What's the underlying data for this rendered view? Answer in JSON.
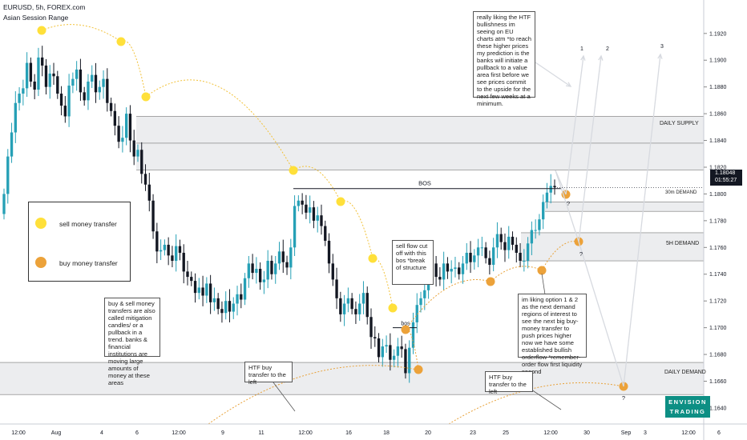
{
  "header": {
    "symbol_line": "EURUSD, 5h, FOREX.com",
    "indicator": "Asian Session Range"
  },
  "price_badge": {
    "price": "1.18048",
    "countdown": "01:55:27"
  },
  "colors": {
    "bull": "#26a0b6",
    "bear": "#131722",
    "sell_dot": "#ffe03a",
    "buy_dot": "#eca23a",
    "zone": "#e6e7ea",
    "logo": "#0d8f84"
  },
  "legend": {
    "sell_label": "sell money transfer",
    "buy_label": "buy money transfer"
  },
  "notes": {
    "htf_bias": "really liking the HTF bullishness im seeing on EU charts atm *to reach these higher prices my prediction is the banks will initiate a pullback to a value area first before we see prices commit to the upside for the next few weeks at a minimum.",
    "mitigation": "buy & sell money transfers are also called mitigation candles/ or a pullback in a trend. banks & financial institutions are moving large amounts of money at these areas",
    "bos_note": "sell flow cut off with this bos *break of structure",
    "options": "im liking option 1 & 2 as the next demand regions of interest to see the next big buy-money transfer to push prices higher now we have some established bullish orderflow *remember- order flow first liquidity second",
    "htf_left_1": "HTF buy transfer to the left",
    "htf_left_2": "HTF buy transfer to the left"
  },
  "zone_labels": {
    "daily_supply": "DAILY SUPPLY",
    "demand_30m": "30m DEMAND",
    "demand_5h": "5H DEMAND",
    "daily_demand": "DAILY DEMAND"
  },
  "chart_labels": {
    "bos_main": "BOS",
    "bos_small": "bos",
    "q": "?",
    "option_1": "1",
    "option_2": "2",
    "option_3": "3"
  },
  "logo": {
    "line1": "ENVISION",
    "line2": "TRADING"
  },
  "chart_data": {
    "type": "candlestick",
    "symbol": "EURUSD",
    "timeframe": "5h",
    "y_ticks": [
      1.164,
      1.166,
      1.168,
      1.17,
      1.172,
      1.174,
      1.176,
      1.178,
      1.18,
      1.182,
      1.184,
      1.186,
      1.188,
      1.19,
      1.192
    ],
    "x_ticks": [
      "12:00",
      "Aug",
      "4",
      "6",
      "12:00",
      "9",
      "11",
      "12:00",
      "16",
      "18",
      "20",
      "23",
      "25",
      "12:00",
      "30",
      "Sep",
      "3",
      "12:00",
      "6"
    ],
    "ohlc_close": [
      1.18,
      1.1828,
      1.1846,
      1.1868,
      1.1875,
      1.1879,
      1.1898,
      1.1884,
      1.1878,
      1.1902,
      1.1896,
      1.188,
      1.189,
      1.1888,
      1.1875,
      1.1866,
      1.1858,
      1.1881,
      1.1886,
      1.1893,
      1.1876,
      1.187,
      1.1884,
      1.1889,
      1.1876,
      1.188,
      1.1886,
      1.1868,
      1.1862,
      1.1851,
      1.1839,
      1.1842,
      1.186,
      1.184,
      1.1828,
      1.1833,
      1.1815,
      1.1807,
      1.1795,
      1.1772,
      1.1757,
      1.1758,
      1.1762,
      1.1754,
      1.175,
      1.1761,
      1.1756,
      1.1742,
      1.1738,
      1.1735,
      1.1726,
      1.173,
      1.1724,
      1.1733,
      1.1719,
      1.1722,
      1.1714,
      1.1711,
      1.172,
      1.1712,
      1.1718,
      1.1725,
      1.1721,
      1.1737,
      1.1748,
      1.1741,
      1.1744,
      1.1734,
      1.1736,
      1.175,
      1.174,
      1.1748,
      1.1757,
      1.1749,
      1.1745,
      1.176,
      1.1791,
      1.1795,
      1.1792,
      1.1786,
      1.179,
      1.178,
      1.1784,
      1.1776,
      1.1765,
      1.1748,
      1.1736,
      1.1722,
      1.171,
      1.1718,
      1.1722,
      1.1714,
      1.171,
      1.1718,
      1.1726,
      1.1708,
      1.1693,
      1.1692,
      1.1678,
      1.1686,
      1.1687,
      1.1676,
      1.1679,
      1.1686,
      1.1684,
      1.1666,
      1.1685,
      1.1704,
      1.1717,
      1.1722,
      1.1728,
      1.1742,
      1.1748,
      1.1738,
      1.1736,
      1.1748,
      1.1742,
      1.1744,
      1.1745,
      1.174,
      1.1748,
      1.1756,
      1.1749,
      1.1754,
      1.176,
      1.176,
      1.1752,
      1.1747,
      1.176,
      1.177,
      1.1764,
      1.1758,
      1.1768,
      1.1762,
      1.1756,
      1.175,
      1.175,
      1.1763,
      1.1773,
      1.1773,
      1.1781,
      1.1794,
      1.1801,
      1.1806,
      1.1805
    ],
    "zones": [
      {
        "name": "DAILY SUPPLY",
        "from": 1.1818,
        "to": 1.1858
      },
      {
        "name": "30m DEMAND",
        "from": 1.1787,
        "to": 1.1794
      },
      {
        "name": "5H DEMAND",
        "from": 1.175,
        "to": 1.1771
      },
      {
        "name": "DAILY DEMAND",
        "from": 1.165,
        "to": 1.1674
      }
    ],
    "bos_level": 1.1804,
    "last_price": 1.18048
  }
}
